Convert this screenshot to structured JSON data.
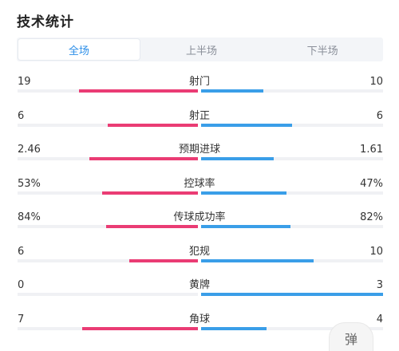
{
  "section": {
    "title": "技术统计"
  },
  "tabs": [
    {
      "label": "全场",
      "active": true
    },
    {
      "label": "上半场",
      "active": false
    },
    {
      "label": "下半场",
      "active": false
    }
  ],
  "colors": {
    "home": "#ea3c74",
    "away": "#3a9ee8",
    "accent": "#2b8ee8"
  },
  "stats": [
    {
      "label": "射门",
      "home": "19",
      "away": "10",
      "home_share": 0.66,
      "away_share": 0.34
    },
    {
      "label": "射正",
      "home": "6",
      "away": "6",
      "home_share": 0.5,
      "away_share": 0.5
    },
    {
      "label": "预期进球",
      "home": "2.46",
      "away": "1.61",
      "home_share": 0.6,
      "away_share": 0.4
    },
    {
      "label": "控球率",
      "home": "53%",
      "away": "47%",
      "home_share": 0.53,
      "away_share": 0.47
    },
    {
      "label": "传球成功率",
      "home": "84%",
      "away": "82%",
      "home_share": 0.51,
      "away_share": 0.49
    },
    {
      "label": "犯规",
      "home": "6",
      "away": "10",
      "home_share": 0.38,
      "away_share": 0.62
    },
    {
      "label": "黄牌",
      "home": "0",
      "away": "3",
      "home_share": 0.0,
      "away_share": 1.0
    },
    {
      "label": "角球",
      "home": "7",
      "away": "4",
      "home_share": 0.64,
      "away_share": 0.36
    }
  ],
  "danmu": {
    "label": "弹"
  }
}
